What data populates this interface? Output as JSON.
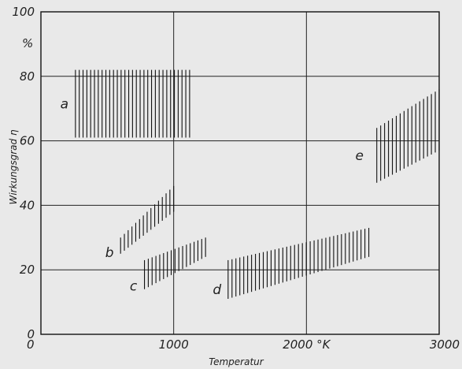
{
  "chart_data": {
    "type": "area",
    "title": "",
    "xlabel": "Temperatur",
    "ylabel": "Wirkungsgrad η",
    "xlim": [
      0,
      3000
    ],
    "ylim": [
      0,
      100
    ],
    "x_ticks": [
      0,
      1000,
      2000,
      3000
    ],
    "y_ticks": [
      0,
      20,
      40,
      60,
      80,
      100
    ],
    "x_tick_labels": [
      "0",
      "1000",
      "2000  °K",
      "3000"
    ],
    "y_tick_labels": [
      "0",
      "20",
      "40",
      "60",
      "80",
      "100"
    ],
    "y_unit_label": "%",
    "grid": true,
    "series": [
      {
        "name": "a",
        "x_range": [
          260,
          1120
        ],
        "lower": [
          61,
          61
        ],
        "upper": [
          82,
          82
        ]
      },
      {
        "name": "b",
        "x_range": [
          600,
          1000
        ],
        "lower": [
          25,
          38
        ],
        "upper": [
          30,
          46
        ]
      },
      {
        "name": "c",
        "x_range": [
          780,
          1240
        ],
        "lower": [
          14,
          24
        ],
        "upper": [
          23,
          30
        ]
      },
      {
        "name": "d",
        "x_range": [
          1410,
          2470
        ],
        "lower": [
          11,
          24
        ],
        "upper": [
          23,
          33
        ]
      },
      {
        "name": "e",
        "x_range": [
          2530,
          3000
        ],
        "lower": [
          47,
          57
        ],
        "upper": [
          64,
          76
        ]
      }
    ]
  }
}
